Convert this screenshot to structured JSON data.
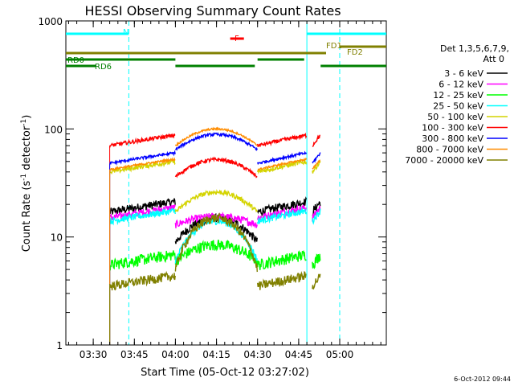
{
  "chart_data": {
    "type": "line",
    "title": "HESSI Observing Summary Count Rates",
    "xlabel": "Start Time (05-Oct-12 03:27:02)",
    "ylabel_main": "Count Rate (s",
    "ylabel_sup1": "-1",
    "ylabel_mid": " detector",
    "ylabel_sup2": "-1",
    "ylabel_end": ")",
    "yscale": "log",
    "ylim": [
      1,
      1000
    ],
    "xlim_minutes": [
      -7,
      110
    ],
    "xticks": [
      {
        "m": 3,
        "label": "03:30"
      },
      {
        "m": 18,
        "label": "03:45"
      },
      {
        "m": 33,
        "label": "04:00"
      },
      {
        "m": 48,
        "label": "04:15"
      },
      {
        "m": 63,
        "label": "04:30"
      },
      {
        "m": 78,
        "label": "04:45"
      },
      {
        "m": 93,
        "label": "05:00"
      }
    ],
    "yticks": [
      {
        "v": 1,
        "label": "1"
      },
      {
        "v": 10,
        "label": "10"
      },
      {
        "v": 100,
        "label": "100"
      },
      {
        "v": 1000,
        "label": "1000"
      }
    ],
    "legend_header": [
      "Det 1,3,5,6,7,9,",
      "Att 0"
    ],
    "series": [
      {
        "name": "3 - 6 keV",
        "color": "#000000",
        "day": 17,
        "night_min": 9,
        "night_amp": 6,
        "noise": 0.09
      },
      {
        "name": "6 - 12 keV",
        "color": "#ff00ff",
        "day": 15,
        "night_min": 13,
        "night_amp": 2.5,
        "noise": 0.08
      },
      {
        "name": "12 - 25 keV",
        "color": "#00ff00",
        "day": 5.5,
        "night_min": 6,
        "night_amp": 2.5,
        "noise": 0.12
      },
      {
        "name": "25 - 50 keV",
        "color": "#00ffff",
        "day": 14,
        "night_min": 6,
        "night_amp": 8,
        "noise": 0.07
      },
      {
        "name": "50 - 100 keV",
        "color": "#d4d400",
        "day": 40,
        "night_min": 17,
        "night_amp": 9,
        "noise": 0.05
      },
      {
        "name": "100 - 300 keV",
        "color": "#ff0000",
        "day": 70,
        "night_min": 36,
        "night_amp": 16,
        "noise": 0.04
      },
      {
        "name": "300 - 800 keV",
        "color": "#0000ff",
        "day": 48,
        "night_min": 64,
        "night_amp": 25,
        "noise": 0.03
      },
      {
        "name": "800 - 7000 keV",
        "color": "#ff8c00",
        "day": 42,
        "night_min": 70,
        "night_amp": 30,
        "noise": 0.02
      },
      {
        "name": "7000 - 20000 keV",
        "color": "#808000",
        "day": 3.5,
        "night_min": 5,
        "night_amp": 10,
        "noise": 0.1
      }
    ],
    "time_segments_minutes": [
      [
        9,
        33
      ],
      [
        33,
        63
      ],
      [
        63,
        81
      ],
      [
        83,
        86
      ]
    ],
    "flags": [
      {
        "label": "N",
        "color": "#00ffff",
        "segments": [
          [
            -7,
            16
          ],
          [
            81,
            110
          ]
        ]
      },
      {
        "label": "F",
        "color": "#ff0000",
        "segments": [
          [
            53,
            58
          ]
        ]
      },
      {
        "label": "FD1",
        "color": "#808000",
        "segments": [
          [
            -7,
            88
          ]
        ]
      },
      {
        "label": "FD2",
        "color": "#808000",
        "segments": [
          [
            93,
            110
          ]
        ]
      },
      {
        "label": "RD0",
        "color": "#008000",
        "segments": [
          [
            -7,
            33
          ],
          [
            63,
            80
          ]
        ]
      },
      {
        "label": "RD6",
        "color": "#008000",
        "segments": [
          [
            -7,
            4
          ],
          [
            33,
            62
          ],
          [
            86,
            110
          ]
        ]
      }
    ],
    "saa_lines_minutes": [
      16,
      93
    ],
    "night_line_minutes": [
      81
    ],
    "grid": false,
    "legend_position": "right"
  },
  "footer": {
    "timestamp": "6-Oct-2012 09:44"
  }
}
